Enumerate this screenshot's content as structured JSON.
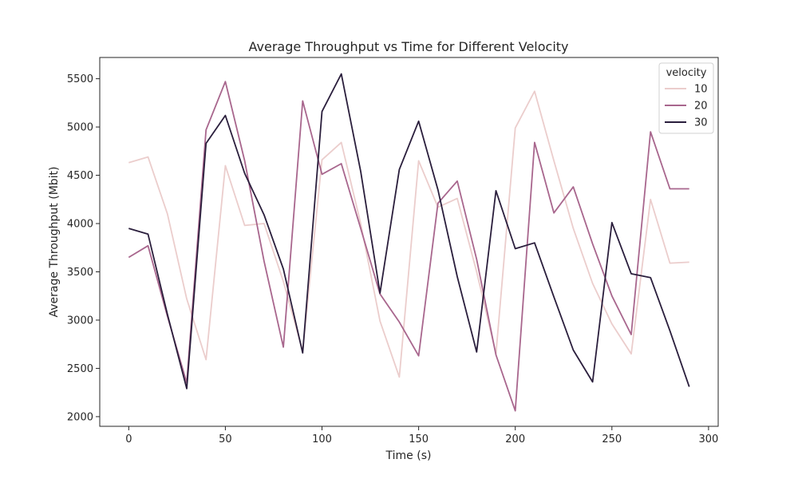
{
  "chart_data": {
    "type": "line",
    "title": "Average Throughput vs Time for Different Velocity",
    "xlabel": "Time (s)",
    "ylabel": "Average Throughput (Mbit)",
    "xlim": [
      -15,
      305
    ],
    "ylim": [
      1900,
      5720
    ],
    "xticks": [
      0,
      50,
      100,
      150,
      200,
      250,
      300
    ],
    "yticks": [
      2000,
      2500,
      3000,
      3500,
      4000,
      4500,
      5000,
      5500
    ],
    "grid": false,
    "legend": {
      "title": "velocity",
      "placement": "top-right"
    },
    "x": [
      0,
      10,
      20,
      30,
      40,
      50,
      60,
      70,
      80,
      90,
      100,
      110,
      120,
      130,
      140,
      150,
      160,
      170,
      180,
      190,
      200,
      210,
      220,
      230,
      240,
      250,
      260,
      270,
      280,
      290
    ],
    "series": [
      {
        "name": "10",
        "color": "#ebcdcc",
        "values": [
          4630,
          4690,
          4100,
          3220,
          2590,
          4600,
          3980,
          4000,
          3400,
          2680,
          4660,
          4840,
          4000,
          2990,
          2410,
          4650,
          4170,
          4260,
          3500,
          2650,
          4990,
          5370,
          4650,
          3950,
          3380,
          2960,
          2650,
          4250,
          3590,
          3600
        ]
      },
      {
        "name": "20",
        "color": "#a8668d",
        "values": [
          3650,
          3770,
          3040,
          2350,
          4970,
          5470,
          4650,
          3610,
          2720,
          5270,
          4510,
          4620,
          3950,
          3270,
          2980,
          2630,
          4210,
          4440,
          3630,
          2640,
          2060,
          4840,
          4110,
          4380,
          3790,
          3250,
          2850,
          4950,
          4360,
          4360
        ]
      },
      {
        "name": "30",
        "color": "#2a1e3c",
        "values": [
          3950,
          3890,
          3060,
          2290,
          4830,
          5120,
          4520,
          4090,
          3530,
          2660,
          5160,
          5550,
          4540,
          3280,
          4560,
          5060,
          4350,
          3450,
          2670,
          4340,
          3740,
          3800,
          3240,
          2690,
          2360,
          4010,
          3480,
          3440,
          2890,
          2310
        ]
      }
    ]
  }
}
